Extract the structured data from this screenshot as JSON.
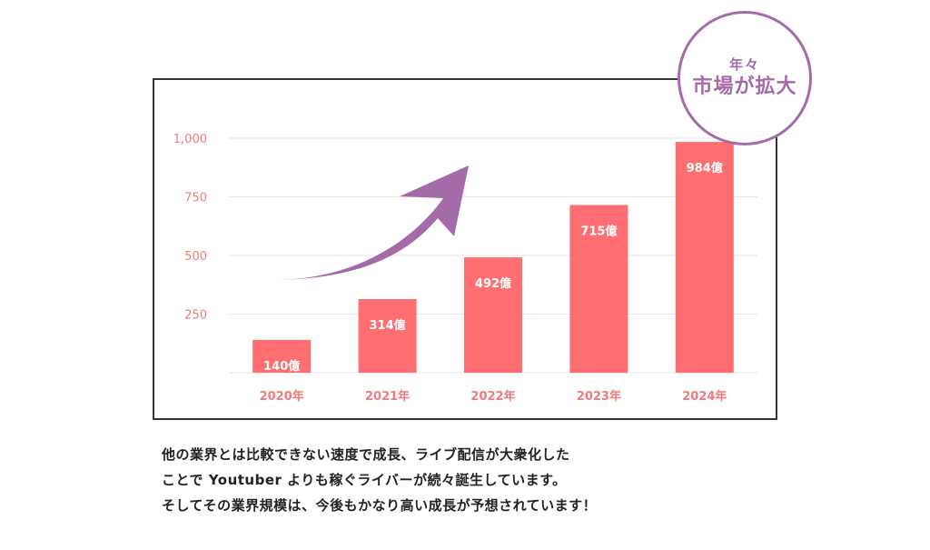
{
  "badge": {
    "line1": "年々",
    "line2": "市場が拡大"
  },
  "chart_data": {
    "type": "bar",
    "categories": [
      "2020年",
      "2021年",
      "2022年",
      "2023年",
      "2024年"
    ],
    "values": [
      140,
      314,
      492,
      715,
      984
    ],
    "data_labels": [
      "140億",
      "314億",
      "492億",
      "715億",
      "984億"
    ],
    "y_ticks": [
      250,
      500,
      750,
      1000
    ],
    "y_tick_labels": [
      "250",
      "500",
      "750",
      "1,000"
    ],
    "ylim": [
      0,
      1000
    ],
    "grid": true,
    "colors": {
      "bar": "#ff6f72",
      "tick_text": "#f07a7c",
      "grid": "#e6e6e6",
      "arrow": "#a56ba8"
    }
  },
  "description": {
    "line1": "他の業界とは比較できない速度で成長、ライブ配信が大衆化した",
    "line2": "ことで Youtuber よりも稼ぐライバーが続々誕生しています。",
    "line3": "そしてその業界規模は、今後もかなり高い成長が予想されています！"
  }
}
